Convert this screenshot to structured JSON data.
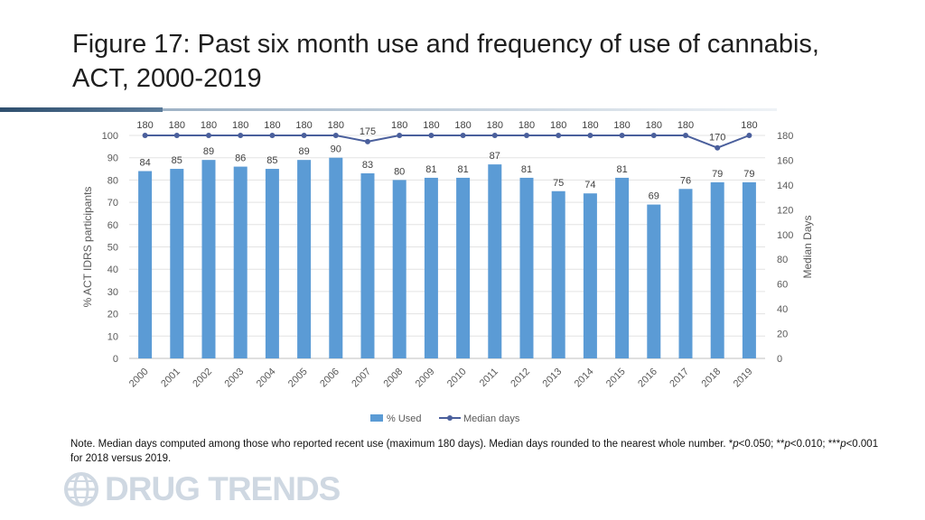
{
  "title": "Figure 17: Past six month use and frequency of use of cannabis, ACT, 2000-2019",
  "note": {
    "prefix": "Note. Median days computed among those who reported recent use (maximum 180 days). Median days rounded to the nearest whole number. *",
    "p1": "p",
    "t1": "<0.050; **",
    "p2": "p",
    "t2": "<0.010; ***",
    "p3": "p",
    "t3": "<0.001 for 2018 versus 2019."
  },
  "logo": {
    "text": "DRUG TRENDS",
    "icon": "globe-icon"
  },
  "chart_data": {
    "type": "bar+line",
    "categories": [
      "2000",
      "2001",
      "2002",
      "2003",
      "2004",
      "2005",
      "2006",
      "2007",
      "2008",
      "2009",
      "2010",
      "2011",
      "2012",
      "2013",
      "2014",
      "2015",
      "2016",
      "2017",
      "2018",
      "2019"
    ],
    "series": [
      {
        "name": "% Used",
        "type": "bar",
        "axis": "left",
        "color": "#5b9bd5",
        "values": [
          84,
          85,
          89,
          86,
          85,
          89,
          90,
          83,
          80,
          81,
          81,
          87,
          81,
          75,
          74,
          81,
          69,
          76,
          79,
          79
        ]
      },
      {
        "name": "Median days",
        "type": "line",
        "axis": "right",
        "color": "#4a5f9c",
        "values": [
          180,
          180,
          180,
          180,
          180,
          180,
          180,
          175,
          180,
          180,
          180,
          180,
          180,
          180,
          180,
          180,
          180,
          180,
          170,
          180
        ]
      }
    ],
    "ylabel": "% ACT IDRS participants",
    "y2label": "Median Days",
    "ylim": [
      0,
      100
    ],
    "y2lim": [
      0,
      180
    ],
    "yticks": [
      0,
      10,
      20,
      30,
      40,
      50,
      60,
      70,
      80,
      90,
      100
    ],
    "y2ticks": [
      0,
      20,
      40,
      60,
      80,
      100,
      120,
      140,
      160,
      180
    ],
    "legend": [
      "% Used",
      "Median days"
    ],
    "legend_position": "bottom",
    "grid": true
  }
}
